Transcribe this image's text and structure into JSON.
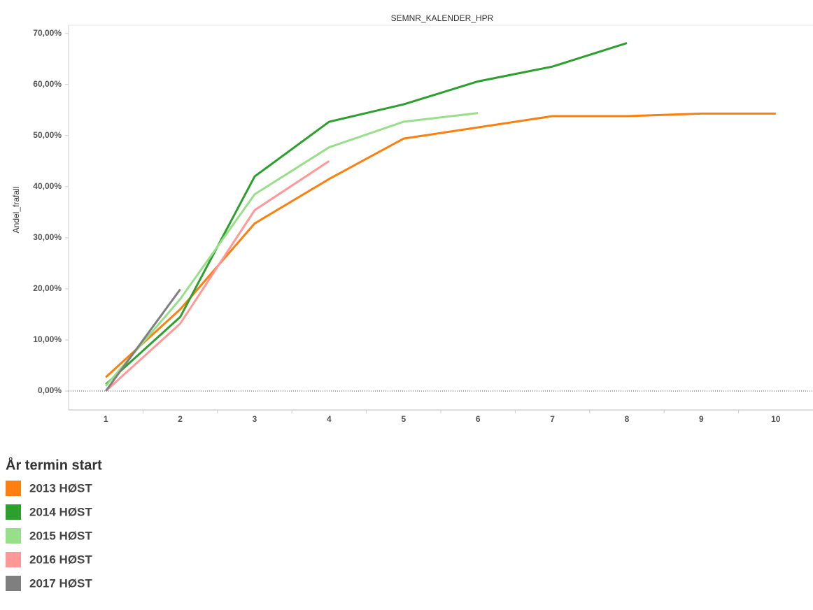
{
  "chart_data": {
    "type": "line",
    "title": "SEMNR_KALENDER_HPR",
    "y_label": "Andel_frafall",
    "categories": [
      "1",
      "2",
      "3",
      "4",
      "5",
      "6",
      "7",
      "8",
      "9",
      "10"
    ],
    "series": [
      {
        "name": "2013 HØST",
        "color": "#ff7f0e",
        "values": [
          2.7,
          16,
          32.8,
          41.5,
          49.4,
          51.6,
          53.8,
          53.8,
          54.3,
          54.3
        ]
      },
      {
        "name": "2014 HØST",
        "color": "#2ca02c",
        "values": [
          1.3,
          14.5,
          42,
          52.7,
          56.1,
          60.6,
          63.5,
          68.1,
          null,
          null
        ]
      },
      {
        "name": "2015 HØST",
        "color": "#98df8a",
        "values": [
          1,
          18,
          38.5,
          47.7,
          52.7,
          54.4,
          null,
          null,
          null,
          null
        ]
      },
      {
        "name": "2016 HØST",
        "color": "#ff9896",
        "values": [
          0,
          13.2,
          35.4,
          45,
          null,
          null,
          null,
          null,
          null,
          null
        ]
      },
      {
        "name": "2017 HØST",
        "color": "#7f7f7f",
        "values": [
          0,
          19.9,
          null,
          null,
          null,
          null,
          null,
          null,
          null,
          null
        ]
      }
    ],
    "legend_title": "År termin start",
    "ylim": [
      -3.7,
      71.6
    ],
    "yticks": [
      {
        "value": 0,
        "label": "0,00%"
      },
      {
        "value": 10,
        "label": "10,00%"
      },
      {
        "value": 20,
        "label": "20,00%"
      },
      {
        "value": 30,
        "label": "30,00%"
      },
      {
        "value": 40,
        "label": "40,00%"
      },
      {
        "value": 50,
        "label": "50,00%"
      },
      {
        "value": 60,
        "label": "60,00%"
      },
      {
        "value": 70,
        "label": "70,00%"
      }
    ]
  }
}
